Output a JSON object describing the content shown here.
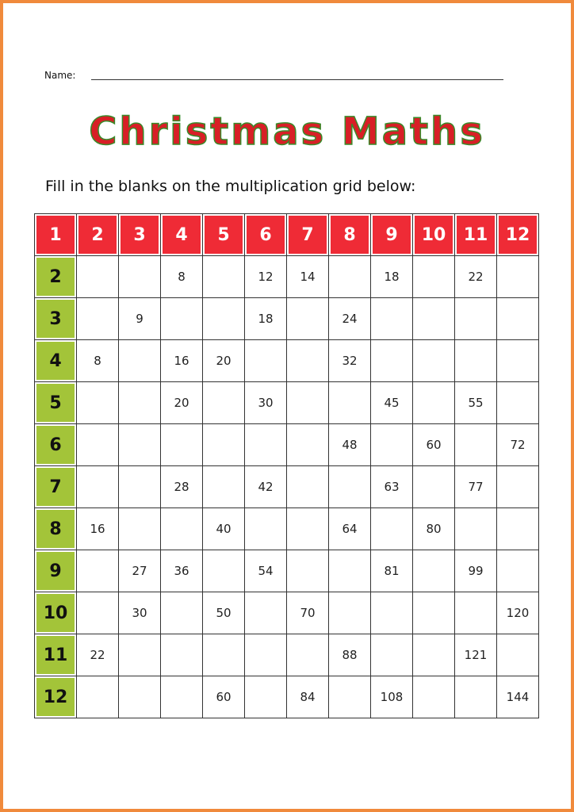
{
  "name_label": "Name:",
  "title": "Christmas Maths",
  "instruction": "Fill in the blanks on the multiplication grid below:",
  "colors": {
    "header_red": "#ef2b36",
    "row_green": "#a3c439",
    "border_orange": "#f08a3c"
  },
  "grid": {
    "column_headers": [
      "1",
      "2",
      "3",
      "4",
      "5",
      "6",
      "7",
      "8",
      "9",
      "10",
      "11",
      "12"
    ],
    "rows": [
      {
        "header": "2",
        "cells": [
          "",
          "",
          "8",
          "",
          "12",
          "14",
          "",
          "18",
          "",
          "22",
          ""
        ]
      },
      {
        "header": "3",
        "cells": [
          "",
          "9",
          "",
          "",
          "18",
          "",
          "24",
          "",
          "",
          "",
          ""
        ]
      },
      {
        "header": "4",
        "cells": [
          "8",
          "",
          "16",
          "20",
          "",
          "",
          "32",
          "",
          "",
          "",
          ""
        ]
      },
      {
        "header": "5",
        "cells": [
          "",
          "",
          "20",
          "",
          "30",
          "",
          "",
          "45",
          "",
          "55",
          ""
        ]
      },
      {
        "header": "6",
        "cells": [
          "",
          "",
          "",
          "",
          "",
          "",
          "48",
          "",
          "60",
          "",
          "72"
        ]
      },
      {
        "header": "7",
        "cells": [
          "",
          "",
          "28",
          "",
          "42",
          "",
          "",
          "63",
          "",
          "77",
          ""
        ]
      },
      {
        "header": "8",
        "cells": [
          "16",
          "",
          "",
          "40",
          "",
          "",
          "64",
          "",
          "80",
          "",
          ""
        ]
      },
      {
        "header": "9",
        "cells": [
          "",
          "27",
          "36",
          "",
          "54",
          "",
          "",
          "81",
          "",
          "99",
          ""
        ]
      },
      {
        "header": "10",
        "cells": [
          "",
          "30",
          "",
          "50",
          "",
          "70",
          "",
          "",
          "",
          "",
          "120"
        ]
      },
      {
        "header": "11",
        "cells": [
          "22",
          "",
          "",
          "",
          "",
          "",
          "88",
          "",
          "",
          "121",
          ""
        ]
      },
      {
        "header": "12",
        "cells": [
          "",
          "",
          "",
          "60",
          "",
          "84",
          "",
          "108",
          "",
          "",
          "144"
        ]
      }
    ]
  }
}
